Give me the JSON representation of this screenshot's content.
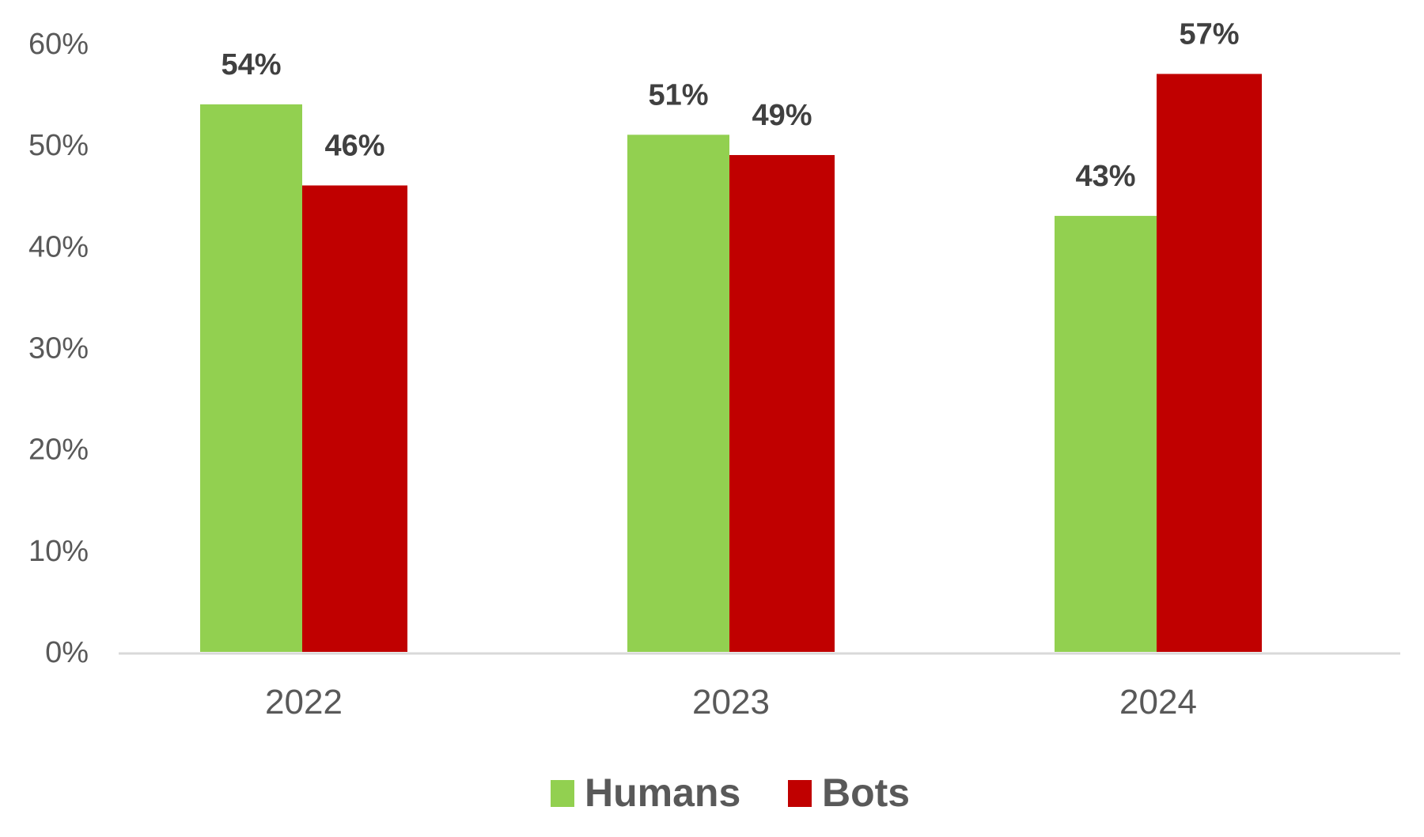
{
  "chart_data": {
    "type": "bar",
    "categories": [
      "2022",
      "2023",
      "2024"
    ],
    "series": [
      {
        "name": "Humans",
        "values": [
          54,
          51,
          43
        ],
        "labels": [
          "54%",
          "51%",
          "43%"
        ],
        "color": "#92d050"
      },
      {
        "name": "Bots",
        "values": [
          46,
          49,
          57
        ],
        "labels": [
          "46%",
          "49%",
          "57%"
        ],
        "color": "#c00000"
      }
    ],
    "ylim": [
      0,
      60
    ],
    "yticks": [
      "0%",
      "10%",
      "20%",
      "30%",
      "40%",
      "50%",
      "60%"
    ],
    "title": "",
    "xlabel": "",
    "ylabel": "",
    "grid": false,
    "legend": "bottom-center"
  }
}
